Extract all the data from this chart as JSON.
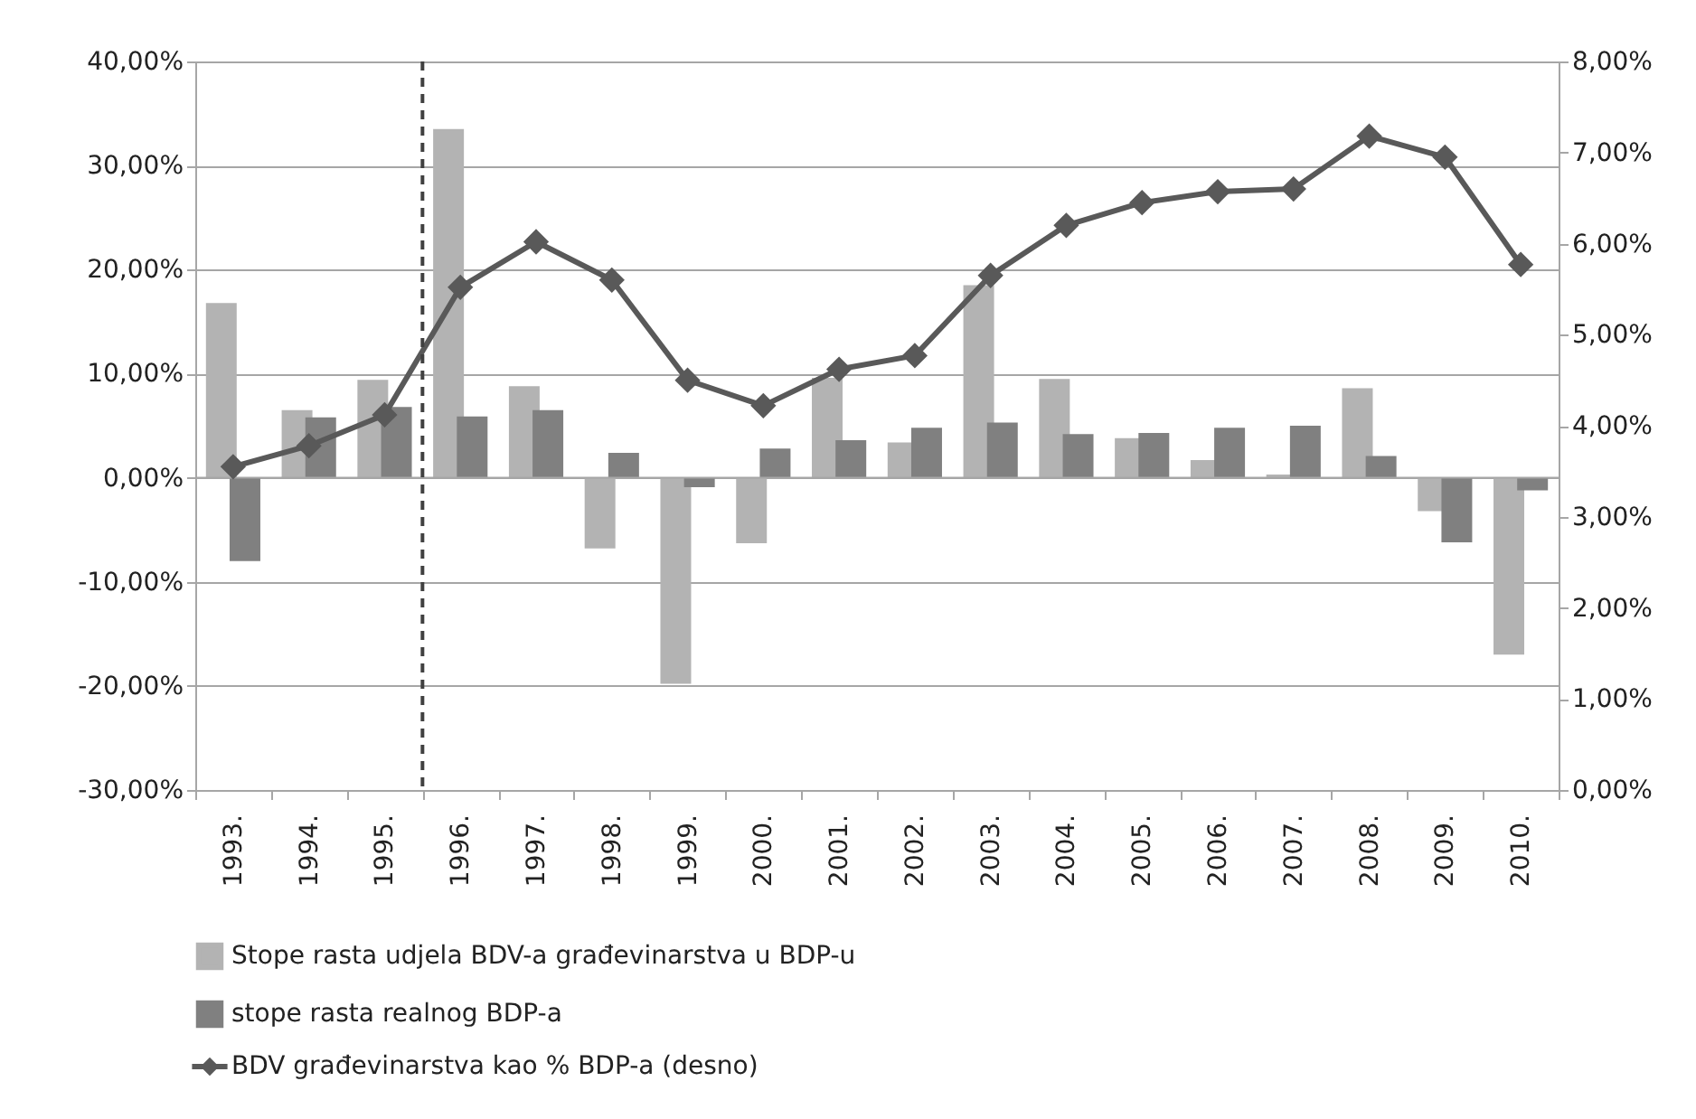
{
  "chart_data": {
    "type": "bar",
    "categories": [
      "1993.",
      "1994.",
      "1995.",
      "1996.",
      "1997.",
      "1998.",
      "1999.",
      "2000.",
      "2001.",
      "2002.",
      "2003.",
      "2004.",
      "2005.",
      "2006.",
      "2007.",
      "2008.",
      "2009.",
      "2010."
    ],
    "series": [
      {
        "name": "Stope rasta udjela BDV-a građevinarstva u BDP-u",
        "color": "#b3b3b3",
        "values": [
          16.8,
          6.5,
          9.4,
          33.5,
          8.8,
          -6.8,
          -19.8,
          -6.3,
          9.6,
          3.4,
          18.5,
          9.5,
          3.8,
          1.7,
          0.3,
          8.6,
          -3.2,
          -17.0
        ]
      },
      {
        "name": "stope rasta realnog BDP-a",
        "color": "#808080",
        "values": [
          -8.0,
          5.8,
          6.8,
          5.9,
          6.5,
          2.4,
          -0.9,
          2.8,
          3.6,
          4.8,
          5.3,
          4.2,
          4.3,
          4.8,
          5.0,
          2.1,
          -6.2,
          -1.2
        ]
      },
      {
        "name": "BDV građevinarstva kao % BDP-a (desno)",
        "type": "line",
        "axis": "y2",
        "color": "#595959",
        "marker": "diamond",
        "values": [
          3.55,
          3.78,
          4.12,
          5.52,
          6.02,
          5.6,
          4.5,
          4.22,
          4.62,
          4.77,
          5.65,
          6.2,
          6.45,
          6.57,
          6.6,
          7.18,
          6.95,
          5.77
        ]
      }
    ],
    "ylim": [
      -30,
      40
    ],
    "yticks": [
      {
        "value": -30,
        "label": "-30,00%"
      },
      {
        "value": -20,
        "label": "-20,00%"
      },
      {
        "value": -10,
        "label": "-10,00%"
      },
      {
        "value": 0,
        "label": "0,00%"
      },
      {
        "value": 10,
        "label": "10,00%"
      },
      {
        "value": 20,
        "label": "20,00%"
      },
      {
        "value": 30,
        "label": "30,00%"
      },
      {
        "value": 40,
        "label": "40,00%"
      }
    ],
    "y2lim": [
      0,
      8
    ],
    "y2ticks": [
      {
        "value": 0,
        "label": "0,00%"
      },
      {
        "value": 1,
        "label": "1,00%"
      },
      {
        "value": 2,
        "label": "2,00%"
      },
      {
        "value": 3,
        "label": "3,00%"
      },
      {
        "value": 4,
        "label": "4,00%"
      },
      {
        "value": 5,
        "label": "5,00%"
      },
      {
        "value": 6,
        "label": "6,00%"
      },
      {
        "value": 7,
        "label": "7,00%"
      },
      {
        "value": 8,
        "label": "8,00%"
      }
    ],
    "ref_lines": [
      {
        "axis": "x",
        "value": "1996.",
        "line_style": "dashed",
        "color": "#404040"
      }
    ],
    "grid": "y",
    "legend": "bottom"
  }
}
